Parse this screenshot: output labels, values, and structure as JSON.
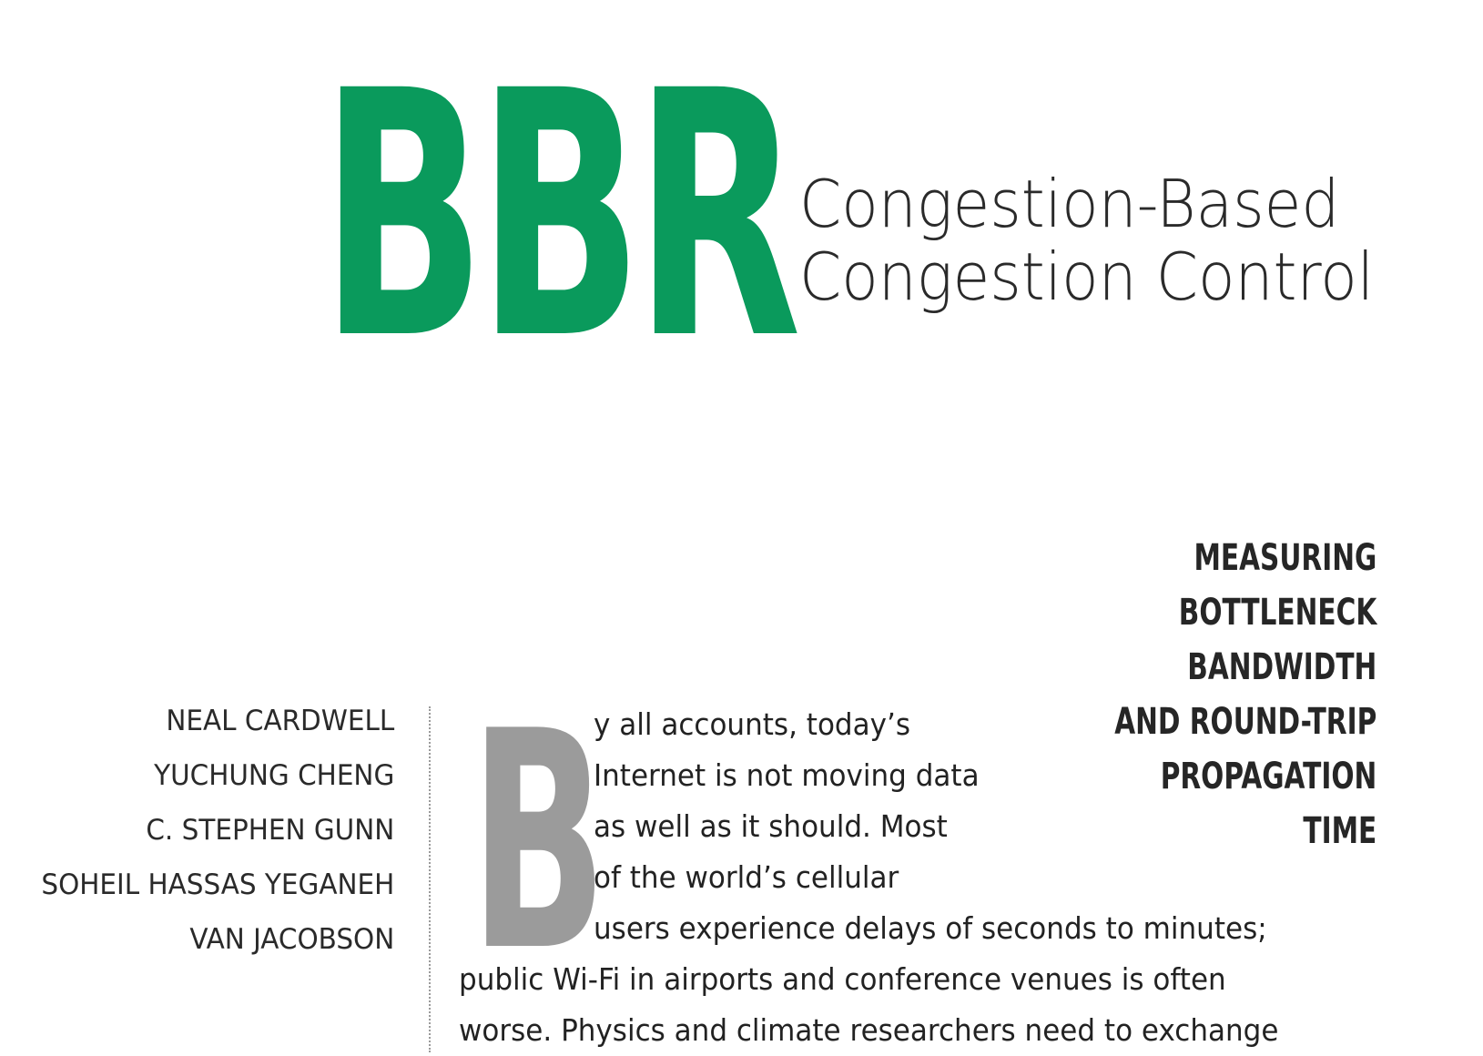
{
  "header": {
    "title": "BBR",
    "subtitle_line1": "Congestion-Based",
    "subtitle_line2": "Congestion Control"
  },
  "pull_quote": {
    "lines": [
      "MEASURING",
      "BOTTLENECK",
      "BANDWIDTH",
      "AND ROUND-TRIP",
      "PROPAGATION",
      "TIME"
    ]
  },
  "authors": [
    "NEAL CARDWELL",
    "YUCHUNG CHENG",
    "C. STEPHEN GUNN",
    "SOHEIL HASSAS YEGANEH",
    "VAN JACOBSON"
  ],
  "article": {
    "drop_cap": "B",
    "indented_lines": [
      "y all accounts, today’s",
      "Internet is not moving data",
      "as well as it should. Most",
      "of the world’s cellular",
      "users experience delays of seconds to minutes;"
    ],
    "full_lines": [
      "public Wi-Fi in airports and conference venues is often",
      "worse. Physics and climate researchers need to exchange"
    ]
  },
  "colors": {
    "title_green": "#0a9a5c",
    "dropcap_gray": "#9b9b9b",
    "text_dark": "#222222"
  }
}
